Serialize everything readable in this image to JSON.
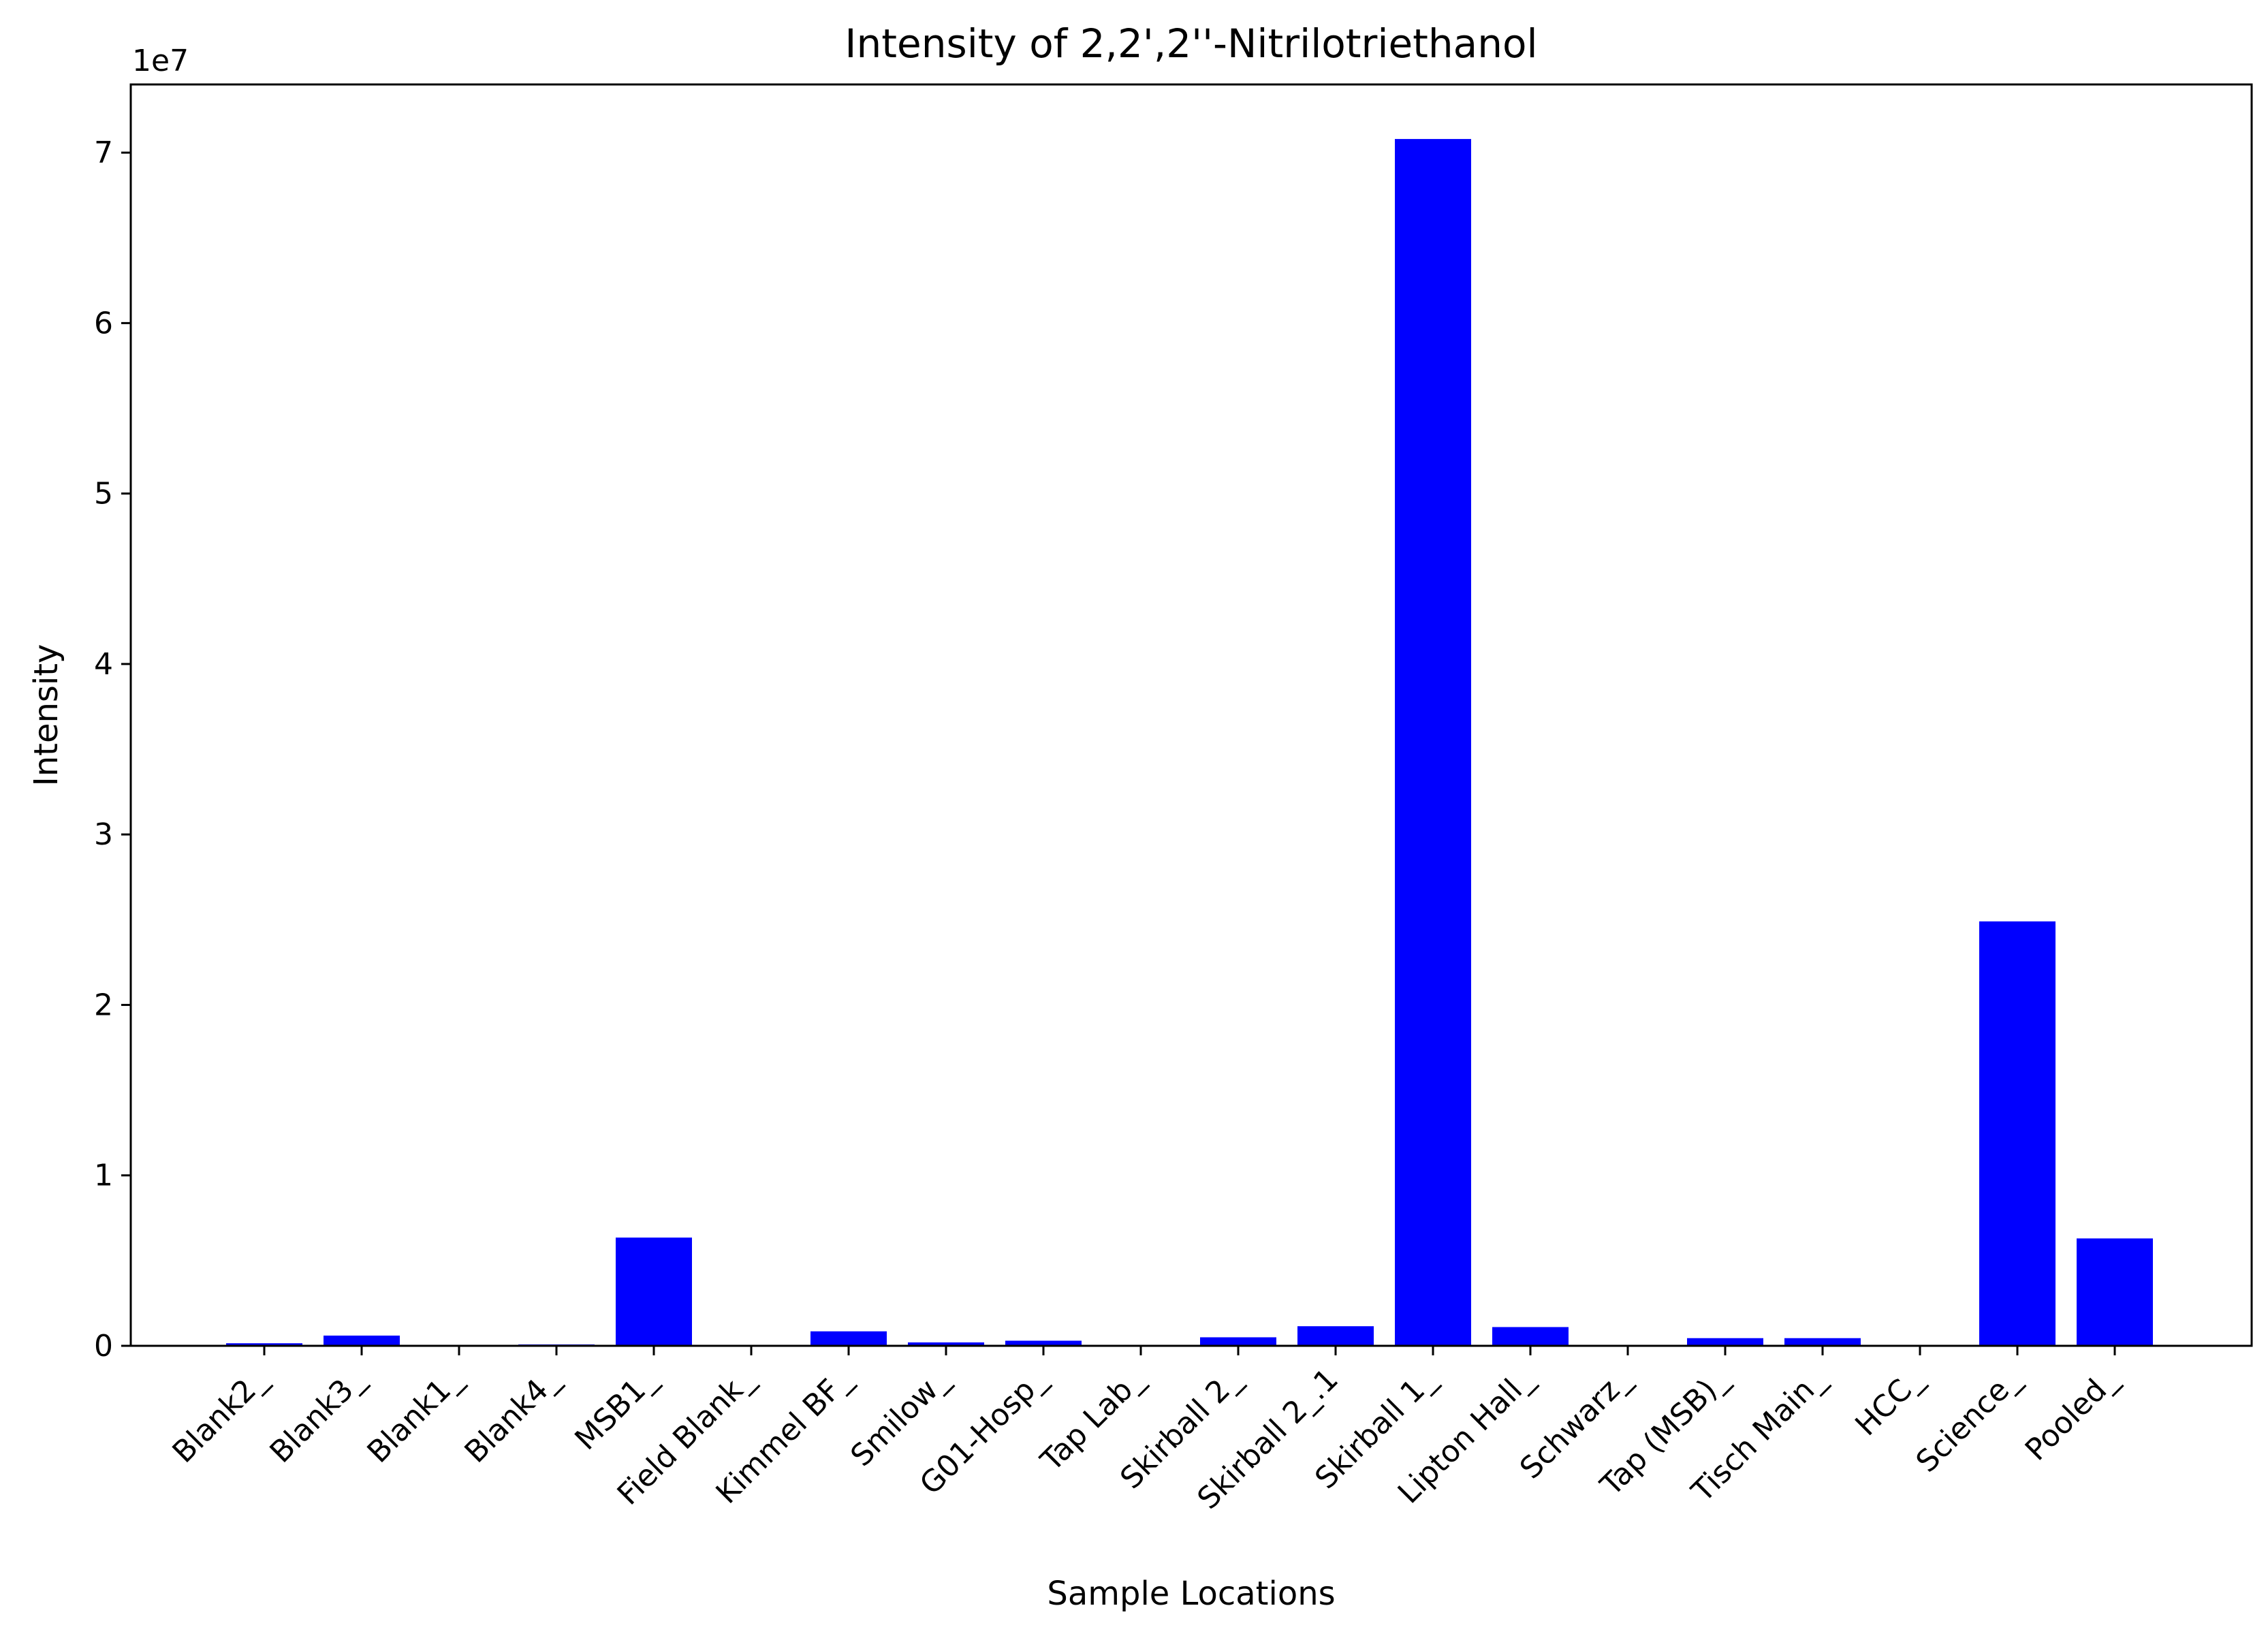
{
  "chart_data": {
    "type": "bar",
    "title": "Intensity of 2,2',2''-Nitrilotriethanol",
    "xlabel": "Sample Locations",
    "ylabel": "Intensity",
    "y_offset_label": "1e7",
    "y_scale": 10000000,
    "ylim": [
      0,
      74000000
    ],
    "yticks": [
      0,
      10000000,
      20000000,
      30000000,
      40000000,
      50000000,
      60000000,
      70000000
    ],
    "ytick_labels": [
      "0",
      "1",
      "2",
      "3",
      "4",
      "5",
      "6",
      "7"
    ],
    "grid": false,
    "bar_color": "#0000ff",
    "categories": [
      "Blank2_",
      "Blank3_",
      "Blank1_",
      "Blank4_",
      "MSB1_",
      "Field Blank_",
      "Kimmel BF_",
      "Smilow_",
      "G01-Hosp_",
      "Tap Lab_",
      "Skirball 2_",
      "Skirball 2_.1",
      "Skirball 1_",
      "Lipton Hall_",
      "Schwarz_",
      "Tap (MSB)_",
      "Tisch Main_",
      "HCC_",
      "Science_",
      "Pooled_"
    ],
    "values": [
      150000,
      600000,
      0,
      80000,
      6350000,
      0,
      850000,
      200000,
      300000,
      0,
      500000,
      1150000,
      70800000,
      1100000,
      0,
      450000,
      450000,
      0,
      24900000,
      6300000
    ]
  }
}
